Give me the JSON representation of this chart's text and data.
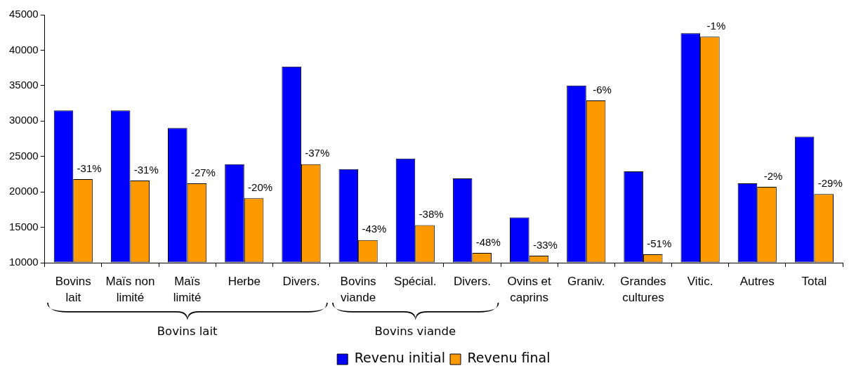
{
  "chart_data": {
    "type": "bar",
    "categories": [
      "Bovins lait",
      "Maïs non limité",
      "Maïs limité",
      "Herbe",
      "Divers.",
      "Bovins viande",
      "Spécial.",
      "Divers.",
      "Ovins et caprins",
      "Graniv.",
      "Grandes cultures",
      "Vitic.",
      "Autres",
      "Total"
    ],
    "series": [
      {
        "name": "Revenu initial",
        "color": "#0000ff",
        "values": [
          31500,
          31500,
          29000,
          23900,
          37700,
          23200,
          24700,
          21900,
          16400,
          35000,
          22900,
          42400,
          21200,
          27800
        ]
      },
      {
        "name": "Revenu final",
        "color": "#ff9900",
        "values": [
          21800,
          21600,
          21200,
          19100,
          23900,
          13200,
          15300,
          11400,
          11000,
          32900,
          11200,
          41900,
          20700,
          19700
        ]
      }
    ],
    "ylim": [
      10000,
      45000
    ],
    "yticks": [
      10000,
      15000,
      20000,
      25000,
      30000,
      35000,
      40000,
      45000
    ],
    "grid": false,
    "legend": "bottom",
    "annotations": [
      "Bovins lait",
      "Bovins viande",
      {
        "text": "-31%",
        "x": "Bovins lait",
        "y": 21800
      },
      {
        "text": "-31%",
        "x": "Maïs non limité",
        "y": 21600
      },
      {
        "text": "-27%",
        "x": "Maïs limité",
        "y": 21200
      },
      {
        "text": "-20%",
        "x": "Herbe",
        "y": 19100
      },
      {
        "text": "-37%",
        "x": "Divers.",
        "y": 23900
      },
      {
        "text": "-43%",
        "x": "Bovins viande",
        "y": 13200
      },
      {
        "text": "-38%",
        "x": "Spécial.",
        "y": 15300
      },
      "-48%",
      {
        "text": "-33%",
        "x": "Ovins et caprins",
        "y": 11000
      },
      {
        "text": "-6%",
        "x": "Graniv.",
        "y": 32900
      },
      {
        "text": "-51%",
        "x": "Grandes cultures",
        "y": 11200
      },
      {
        "text": "-1%",
        "x": "Vitic.",
        "y": 41900
      },
      {
        "text": "-2%",
        "x": "Autres",
        "y": 20700
      },
      {
        "text": "-29%",
        "x": "Total",
        "y": 19700
      }
    ]
  }
}
